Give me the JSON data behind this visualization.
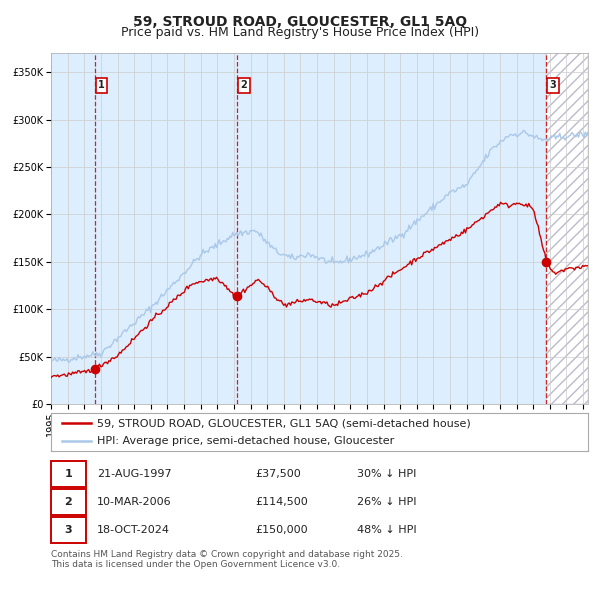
{
  "title": "59, STROUD ROAD, GLOUCESTER, GL1 5AQ",
  "subtitle": "Price paid vs. HM Land Registry's House Price Index (HPI)",
  "legend_line1": "59, STROUD ROAD, GLOUCESTER, GL1 5AQ (semi-detached house)",
  "legend_line2": "HPI: Average price, semi-detached house, Gloucester",
  "footer": "Contains HM Land Registry data © Crown copyright and database right 2025.\nThis data is licensed under the Open Government Licence v3.0.",
  "sales": [
    {
      "num": 1,
      "date": "21-AUG-1997",
      "price": "£37,500",
      "hpi_text": "30% ↓ HPI",
      "x_year": 1997.64,
      "y_val": 37500
    },
    {
      "num": 2,
      "date": "10-MAR-2006",
      "price": "£114,500",
      "hpi_text": "26% ↓ HPI",
      "x_year": 2006.19,
      "y_val": 114500
    },
    {
      "num": 3,
      "date": "18-OCT-2024",
      "price": "£150,000",
      "hpi_text": "48% ↓ HPI",
      "x_year": 2024.8,
      "y_val": 150000
    }
  ],
  "ylim": [
    0,
    370000
  ],
  "xlim_start": 1995.0,
  "xlim_end": 2027.3,
  "yticks": [
    0,
    50000,
    100000,
    150000,
    200000,
    250000,
    300000,
    350000
  ],
  "ytick_labels": [
    "£0",
    "£50K",
    "£100K",
    "£150K",
    "£200K",
    "£250K",
    "£300K",
    "£350K"
  ],
  "xticks": [
    1995,
    1996,
    1997,
    1998,
    1999,
    2000,
    2001,
    2002,
    2003,
    2004,
    2005,
    2006,
    2007,
    2008,
    2009,
    2010,
    2011,
    2012,
    2013,
    2014,
    2015,
    2016,
    2017,
    2018,
    2019,
    2020,
    2021,
    2022,
    2023,
    2024,
    2025,
    2026,
    2027
  ],
  "hpi_color": "#aac8e8",
  "price_color": "#cc0000",
  "shade_color": "#ddeeff",
  "hatch_color": "#cccccc",
  "grid_color": "#cccccc",
  "title_fontsize": 10,
  "subtitle_fontsize": 9,
  "axis_fontsize": 7,
  "legend_fontsize": 8,
  "table_fontsize": 8,
  "footer_fontsize": 6.5
}
